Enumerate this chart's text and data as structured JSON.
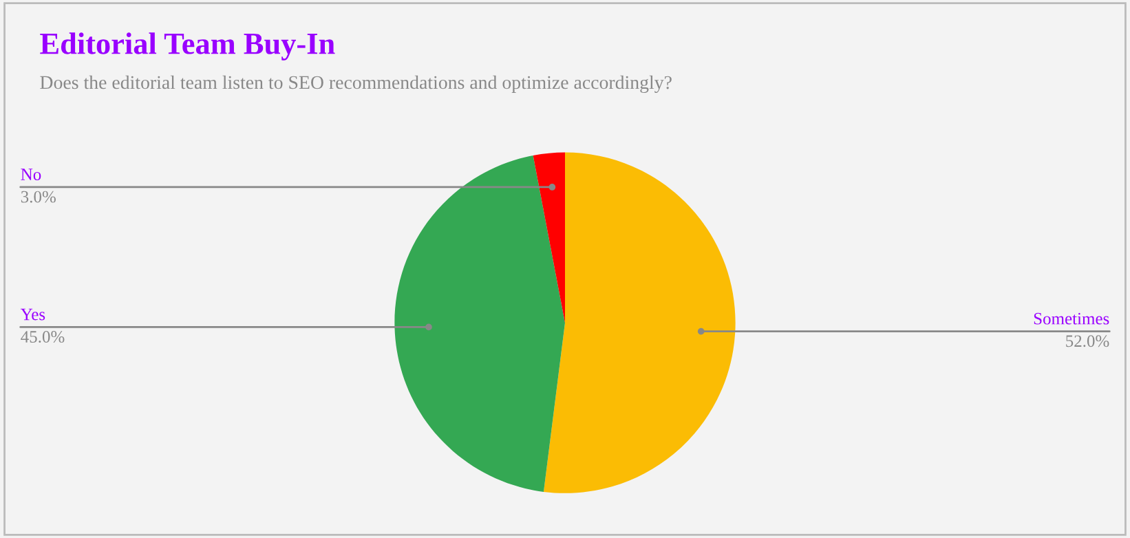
{
  "chart_data": {
    "type": "pie",
    "title": "Editorial Team Buy-In",
    "subtitle": "Does the editorial team listen to SEO recommendations and optimize accordingly?",
    "categories": [
      "Sometimes",
      "Yes",
      "No"
    ],
    "values": [
      52.0,
      45.0,
      3.0
    ],
    "colors": [
      "#fbbc04",
      "#34a853",
      "#ff0000"
    ],
    "value_labels": [
      "52.0%",
      "45.0%",
      "3.0%"
    ],
    "legend": false
  }
}
